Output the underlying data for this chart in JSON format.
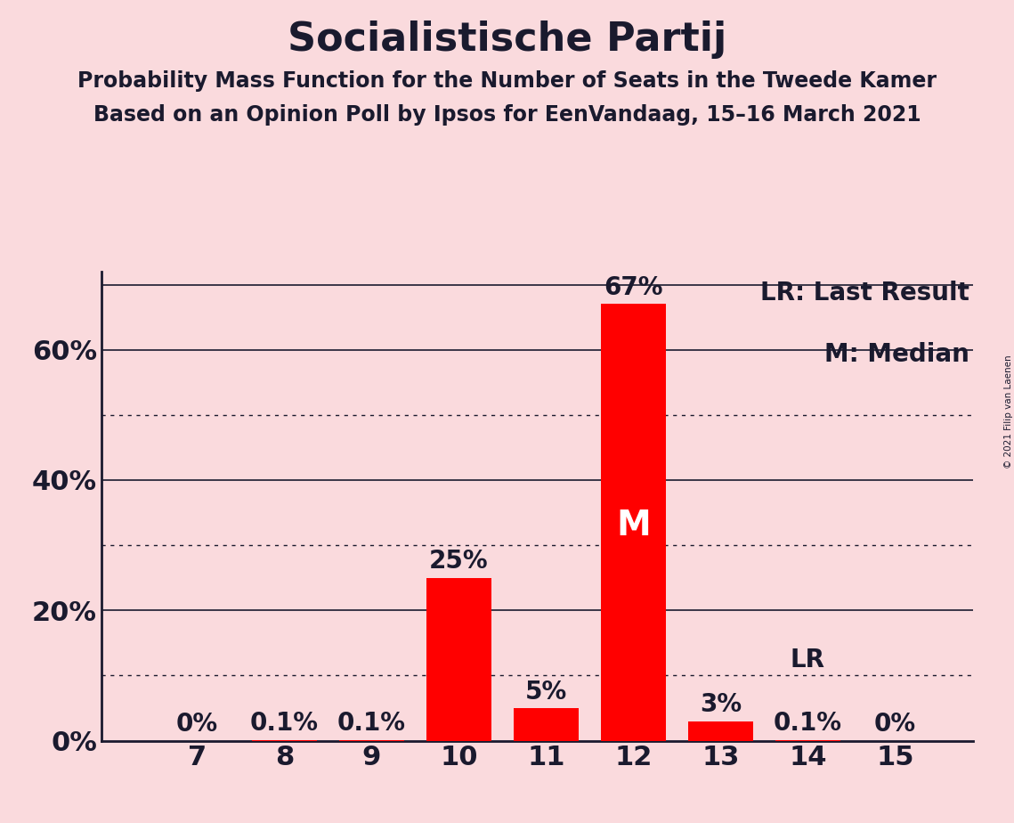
{
  "title": "Socialistische Partij",
  "subtitle1": "Probability Mass Function for the Number of Seats in the Tweede Kamer",
  "subtitle2": "Based on an Opinion Poll by Ipsos for EenVandaag, 15–16 March 2021",
  "copyright": "© 2021 Filip van Laenen",
  "seats": [
    7,
    8,
    9,
    10,
    11,
    12,
    13,
    14,
    15
  ],
  "probabilities": [
    0.0,
    0.1,
    0.1,
    25.0,
    5.0,
    67.0,
    3.0,
    0.1,
    0.0
  ],
  "bar_color": "#FF0000",
  "background_color": "#FADADD",
  "text_color": "#1a1a2e",
  "median_seat": 12,
  "last_result_seat": 14,
  "ylim": [
    0,
    72
  ],
  "yticks": [
    0,
    10,
    20,
    30,
    40,
    50,
    60,
    70
  ],
  "ytick_labels": [
    "0%",
    "",
    "20%",
    "",
    "40%",
    "",
    "60%",
    ""
  ],
  "solid_gridlines": [
    20,
    40,
    60,
    70
  ],
  "dotted_gridlines": [
    10,
    30,
    50
  ],
  "legend_lr": "LR: Last Result",
  "legend_m": "M: Median",
  "title_fontsize": 32,
  "subtitle_fontsize": 17,
  "bar_label_fontsize": 20,
  "axis_label_fontsize": 22,
  "legend_fontsize": 20,
  "bar_width": 0.75
}
